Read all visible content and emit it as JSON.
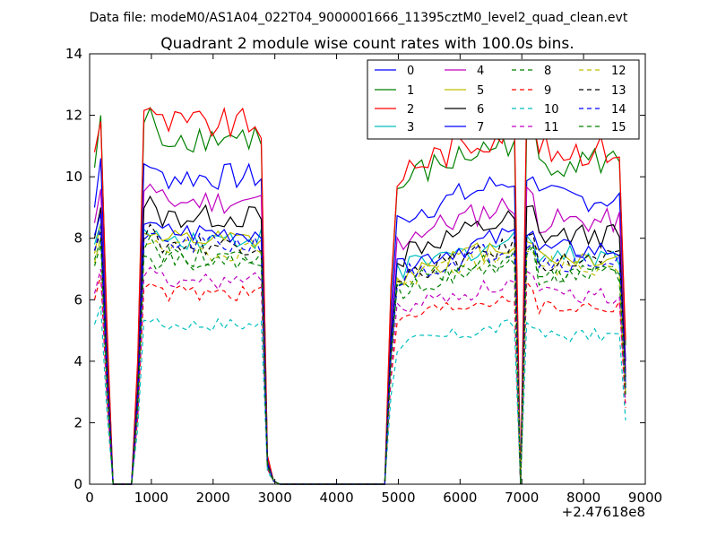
{
  "figure": {
    "suptitle": "Data file: modeM0/AS1A04_022T04_9000001666_11395cztM0_level2_quad_clean.evt",
    "title": "Quadrant 2 module wise count rates with 100.0s bins.",
    "x_offset_label": "+2.47618e8"
  },
  "chart_data": {
    "type": "line",
    "title": "Quadrant 2 module wise count rates with 100.0s bins.",
    "xlabel": "",
    "ylabel": "",
    "xlim": [
      0,
      9000
    ],
    "ylim": [
      0,
      14
    ],
    "x_ticks": [
      0,
      1000,
      2000,
      3000,
      4000,
      5000,
      6000,
      7000,
      8000,
      9000
    ],
    "y_ticks": [
      0,
      2,
      4,
      6,
      8,
      10,
      12,
      14
    ],
    "x_tick_labels": [
      "0",
      "1000",
      "2000",
      "3000",
      "4000",
      "5000",
      "6000",
      "7000",
      "8000",
      "9000"
    ],
    "y_tick_labels": [
      "0",
      "2",
      "4",
      "6",
      "8",
      "10",
      "12",
      "14"
    ],
    "x_offset": "+2.47618e8",
    "grid": false,
    "legend": {
      "placement": "top-right",
      "columns": 4
    },
    "x": [
      80,
      180,
      280,
      380,
      480,
      580,
      680,
      780,
      880,
      980,
      1080,
      1180,
      1280,
      1380,
      1480,
      1580,
      1680,
      1780,
      1880,
      1980,
      2080,
      2180,
      2280,
      2380,
      2480,
      2580,
      2680,
      2780,
      2880,
      2980,
      3080,
      3180,
      3280,
      3380,
      3480,
      3580,
      3680,
      3780,
      3880,
      3980,
      4080,
      4180,
      4280,
      4380,
      4480,
      4580,
      4680,
      4780,
      4880,
      4980,
      5080,
      5180,
      5280,
      5380,
      5480,
      5580,
      5680,
      5780,
      5880,
      5980,
      6080,
      6180,
      6280,
      6380,
      6480,
      6580,
      6680,
      6780,
      6880,
      6980,
      7080,
      7180,
      7280,
      7380,
      7480,
      7580,
      7680,
      7780,
      7880,
      7980,
      8080,
      8180,
      8280,
      8380,
      8480,
      8580,
      8680
    ],
    "series": [
      {
        "name": "0",
        "color": "#0000ff",
        "dash": "solid",
        "level": 10.0,
        "start": 9.0,
        "peak": 10.6
      },
      {
        "name": "1",
        "color": "#008000",
        "dash": "solid",
        "level": 11.3,
        "start": 10.3,
        "peak": 12.0
      },
      {
        "name": "2",
        "color": "#ff0000",
        "dash": "solid",
        "level": 11.7,
        "start": 10.8,
        "peak": 11.8
      },
      {
        "name": "3",
        "color": "#00bfbf",
        "dash": "solid",
        "level": 8.0,
        "start": 7.8,
        "peak": 8.5
      },
      {
        "name": "4",
        "color": "#bf00bf",
        "dash": "solid",
        "level": 9.2,
        "start": 8.5,
        "peak": 9.6
      },
      {
        "name": "5",
        "color": "#bfbf00",
        "dash": "solid",
        "level": 7.9,
        "start": 7.5,
        "peak": 8.5
      },
      {
        "name": "6",
        "color": "#000000",
        "dash": "solid",
        "level": 8.7,
        "start": 8.0,
        "peak": 9.0
      },
      {
        "name": "7",
        "color": "#0000ff",
        "dash": "solid",
        "level": 8.2,
        "start": 8.1,
        "peak": 8.8
      },
      {
        "name": "8",
        "color": "#008000",
        "dash": "dashed",
        "level": 7.4,
        "start": 7.3,
        "peak": 8.0
      },
      {
        "name": "9",
        "color": "#ff0000",
        "dash": "dashed",
        "level": 6.2,
        "start": 6.0,
        "peak": 6.8
      },
      {
        "name": "10",
        "color": "#00bfbf",
        "dash": "dashed",
        "level": 5.2,
        "start": 5.2,
        "peak": 5.8
      },
      {
        "name": "11",
        "color": "#bf00bf",
        "dash": "dashed",
        "level": 6.6,
        "start": 6.2,
        "peak": 7.0
      },
      {
        "name": "12",
        "color": "#bfbf00",
        "dash": "dashed",
        "level": 7.6,
        "start": 7.2,
        "peak": 8.0
      },
      {
        "name": "13",
        "color": "#000000",
        "dash": "dashed",
        "level": 7.8,
        "start": 7.6,
        "peak": 8.2
      },
      {
        "name": "14",
        "color": "#0000ff",
        "dash": "dashed",
        "level": 7.8,
        "start": 7.6,
        "peak": 8.4
      },
      {
        "name": "15",
        "color": "#008000",
        "dash": "dashed",
        "level": 7.3,
        "start": 7.1,
        "peak": 7.8
      }
    ]
  }
}
